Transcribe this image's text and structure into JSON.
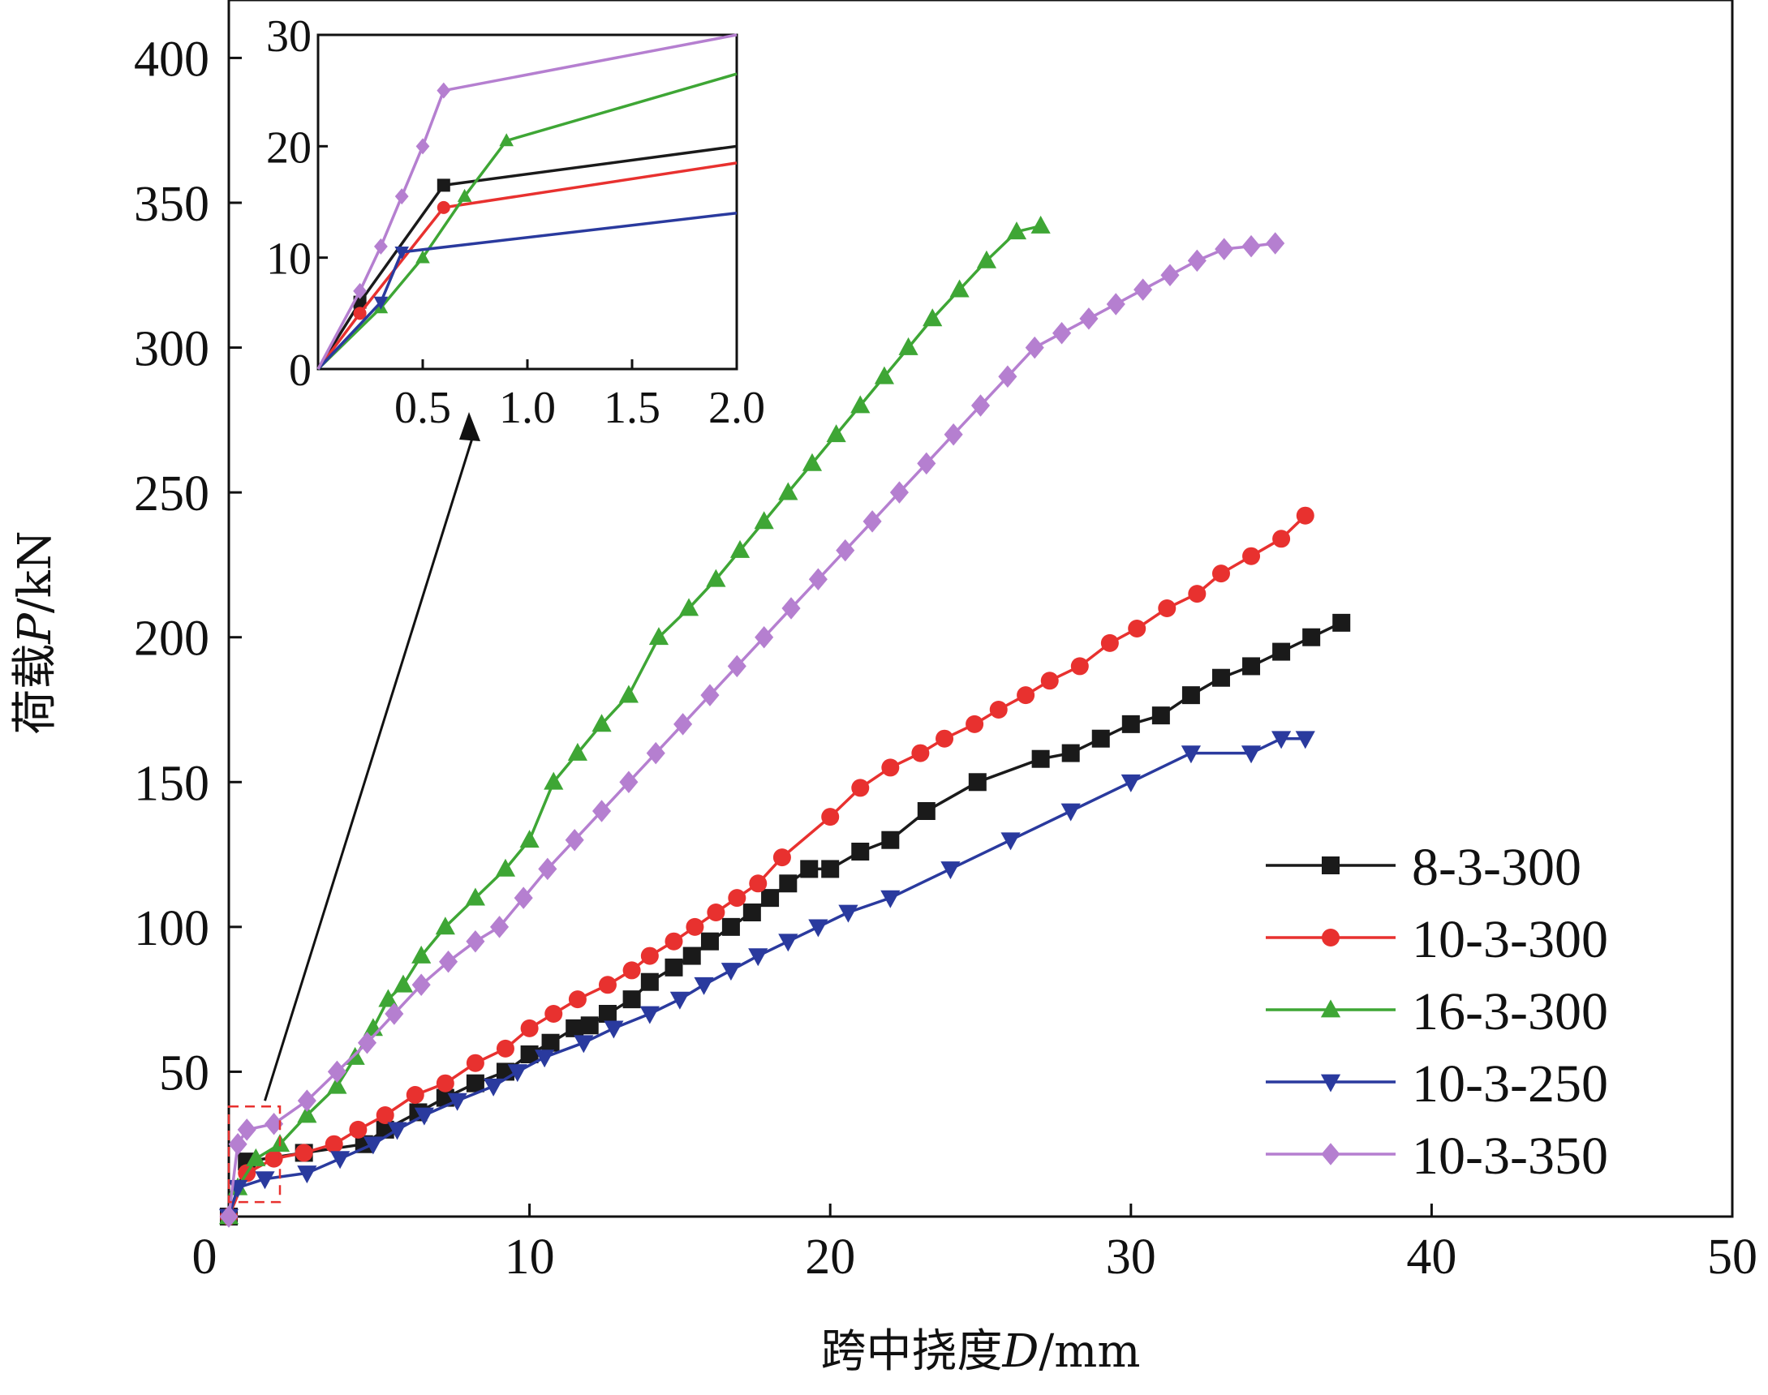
{
  "chart_data": [
    {
      "type": "line",
      "title": "",
      "xlabel": "跨中挠度D/mm",
      "ylabel": "荷载P/kN",
      "xlabel_parts": {
        "prefix": "跨中挠度",
        "var": "D",
        "unit": "/mm"
      },
      "ylabel_parts": {
        "prefix": "荷载",
        "var": "P",
        "unit": "/kN"
      },
      "xlim": [
        0,
        50
      ],
      "ylim": [
        0,
        420
      ],
      "xticks": [
        "0",
        "10",
        "20",
        "30",
        "40",
        "50"
      ],
      "yticks": [
        "50",
        "100",
        "150",
        "200",
        "250",
        "300",
        "350",
        "400"
      ],
      "grid": false,
      "legend_position": "bottom-right",
      "series": [
        {
          "name": "8-3-300",
          "color": "#1a1a1a",
          "marker": "square",
          "x": [
            0,
            0.6,
            2.5,
            4.5,
            5.2,
            6.3,
            7.2,
            8.2,
            9.2,
            10,
            10.7,
            11.5,
            12,
            12.6,
            13.4,
            14,
            14.8,
            15.4,
            16,
            16.7,
            17.4,
            18,
            18.6,
            19.3,
            20,
            21,
            22,
            23.2,
            24.9,
            27,
            28,
            29,
            30,
            31,
            32,
            33,
            34,
            35,
            36,
            37
          ],
          "y": [
            0,
            19,
            22,
            25,
            30,
            36,
            41,
            46,
            50,
            56,
            60,
            65,
            66,
            70,
            75,
            81,
            86,
            90,
            95,
            100,
            105,
            110,
            115,
            120,
            120,
            126,
            130,
            140,
            150,
            158,
            160,
            165,
            170,
            173,
            180,
            186,
            190,
            195,
            200,
            205
          ]
        },
        {
          "name": "10-3-300",
          "color": "#e8312f",
          "marker": "circle",
          "x": [
            0,
            0.6,
            1.5,
            2.5,
            3.5,
            4.3,
            5.2,
            6.2,
            7.2,
            8.2,
            9.2,
            10,
            10.8,
            11.6,
            12.6,
            13.4,
            14,
            14.8,
            15.5,
            16.2,
            16.9,
            17.6,
            18.4,
            20,
            21,
            22,
            23,
            23.8,
            24.8,
            25.6,
            26.5,
            27.3,
            28.3,
            29.3,
            30.2,
            31.2,
            32.2,
            33,
            34,
            35,
            35.8
          ],
          "y": [
            0,
            15,
            20,
            22,
            25,
            30,
            35,
            42,
            46,
            53,
            58,
            65,
            70,
            75,
            80,
            85,
            90,
            95,
            100,
            105,
            110,
            115,
            124,
            138,
            148,
            155,
            160,
            165,
            170,
            175,
            180,
            185,
            190,
            198,
            203,
            210,
            215,
            222,
            228,
            234,
            242
          ]
        },
        {
          "name": "16-3-300",
          "color": "#3ea635",
          "marker": "triangle-up",
          "x": [
            0,
            0.3,
            0.9,
            1.7,
            2.6,
            3.6,
            4.2,
            4.8,
            5.3,
            5.8,
            6.4,
            7.2,
            8.2,
            9.2,
            10,
            10.8,
            11.6,
            12.4,
            13.3,
            14.3,
            15.3,
            16.2,
            17,
            17.8,
            18.6,
            19.4,
            20.2,
            21,
            21.8,
            22.6,
            23.4,
            24.3,
            25.2,
            26.2,
            27
          ],
          "y": [
            0,
            10,
            20,
            25,
            35,
            45,
            55,
            65,
            75,
            80,
            90,
            100,
            110,
            120,
            130,
            150,
            160,
            170,
            180,
            200,
            210,
            220,
            230,
            240,
            250,
            260,
            270,
            280,
            290,
            300,
            310,
            320,
            330,
            340,
            342
          ]
        },
        {
          "name": "10-3-250",
          "color": "#2a3a9e",
          "marker": "triangle-down",
          "x": [
            0,
            0.3,
            1.2,
            2.6,
            3.7,
            4.8,
            5.6,
            6.5,
            7.6,
            8.8,
            9.6,
            10.5,
            11.8,
            12.8,
            14,
            15,
            15.8,
            16.7,
            17.6,
            18.6,
            19.6,
            20.6,
            22,
            24,
            26,
            28,
            30,
            32,
            34,
            35,
            35.8
          ],
          "y": [
            0,
            10,
            13,
            15,
            20,
            25,
            30,
            35,
            40,
            45,
            50,
            55,
            60,
            65,
            70,
            75,
            80,
            85,
            90,
            95,
            100,
            105,
            110,
            120,
            130,
            140,
            150,
            160,
            160,
            165,
            165
          ]
        },
        {
          "name": "10-3-350",
          "color": "#b57fd0",
          "marker": "diamond",
          "x": [
            0,
            0.3,
            0.6,
            1.5,
            2.6,
            3.6,
            4.6,
            5.5,
            6.4,
            7.3,
            8.2,
            9,
            9.8,
            10.6,
            11.5,
            12.4,
            13.3,
            14.2,
            15.1,
            16,
            16.9,
            17.8,
            18.7,
            19.6,
            20.5,
            21.4,
            22.3,
            23.2,
            24.1,
            25,
            25.9,
            26.8,
            27.7,
            28.6,
            29.5,
            30.4,
            31.3,
            32.2,
            33.1,
            34,
            34.8
          ],
          "y": [
            0,
            25,
            30,
            32,
            40,
            50,
            60,
            70,
            80,
            88,
            95,
            100,
            110,
            120,
            130,
            140,
            150,
            160,
            170,
            180,
            190,
            200,
            210,
            220,
            230,
            240,
            250,
            260,
            270,
            280,
            290,
            300,
            305,
            310,
            315,
            320,
            325,
            330,
            334,
            335,
            336
          ]
        }
      ]
    },
    {
      "type": "line",
      "title": "",
      "xlim": [
        0,
        2
      ],
      "ylim": [
        0,
        30
      ],
      "xticks": [
        "0.5",
        "1.0",
        "1.5",
        "2.0"
      ],
      "yticks": [
        "0",
        "10",
        "20",
        "30"
      ],
      "grid": false,
      "series": [
        {
          "name": "8-3-300",
          "color": "#1a1a1a",
          "marker": "square",
          "x": [
            0,
            0.2,
            0.6,
            2.0
          ],
          "y": [
            0,
            6,
            16.5,
            20
          ]
        },
        {
          "name": "10-3-300",
          "color": "#e8312f",
          "marker": "circle",
          "x": [
            0,
            0.2,
            0.6,
            2.0
          ],
          "y": [
            0,
            5,
            14.5,
            18.5
          ]
        },
        {
          "name": "16-3-300",
          "color": "#3ea635",
          "marker": "triangle-up",
          "x": [
            0,
            0.3,
            0.5,
            0.7,
            0.9,
            2.0
          ],
          "y": [
            0,
            5.5,
            10,
            15.5,
            20.5,
            26.5
          ]
        },
        {
          "name": "10-3-250",
          "color": "#2a3a9e",
          "marker": "triangle-down",
          "x": [
            0,
            0.3,
            0.4,
            2.0
          ],
          "y": [
            0,
            6,
            10.5,
            14
          ]
        },
        {
          "name": "10-3-350",
          "color": "#b57fd0",
          "marker": "diamond",
          "x": [
            0,
            0.2,
            0.3,
            0.4,
            0.5,
            0.6,
            2.0
          ],
          "y": [
            0,
            7,
            11,
            15.5,
            20,
            25,
            30
          ]
        }
      ]
    }
  ]
}
